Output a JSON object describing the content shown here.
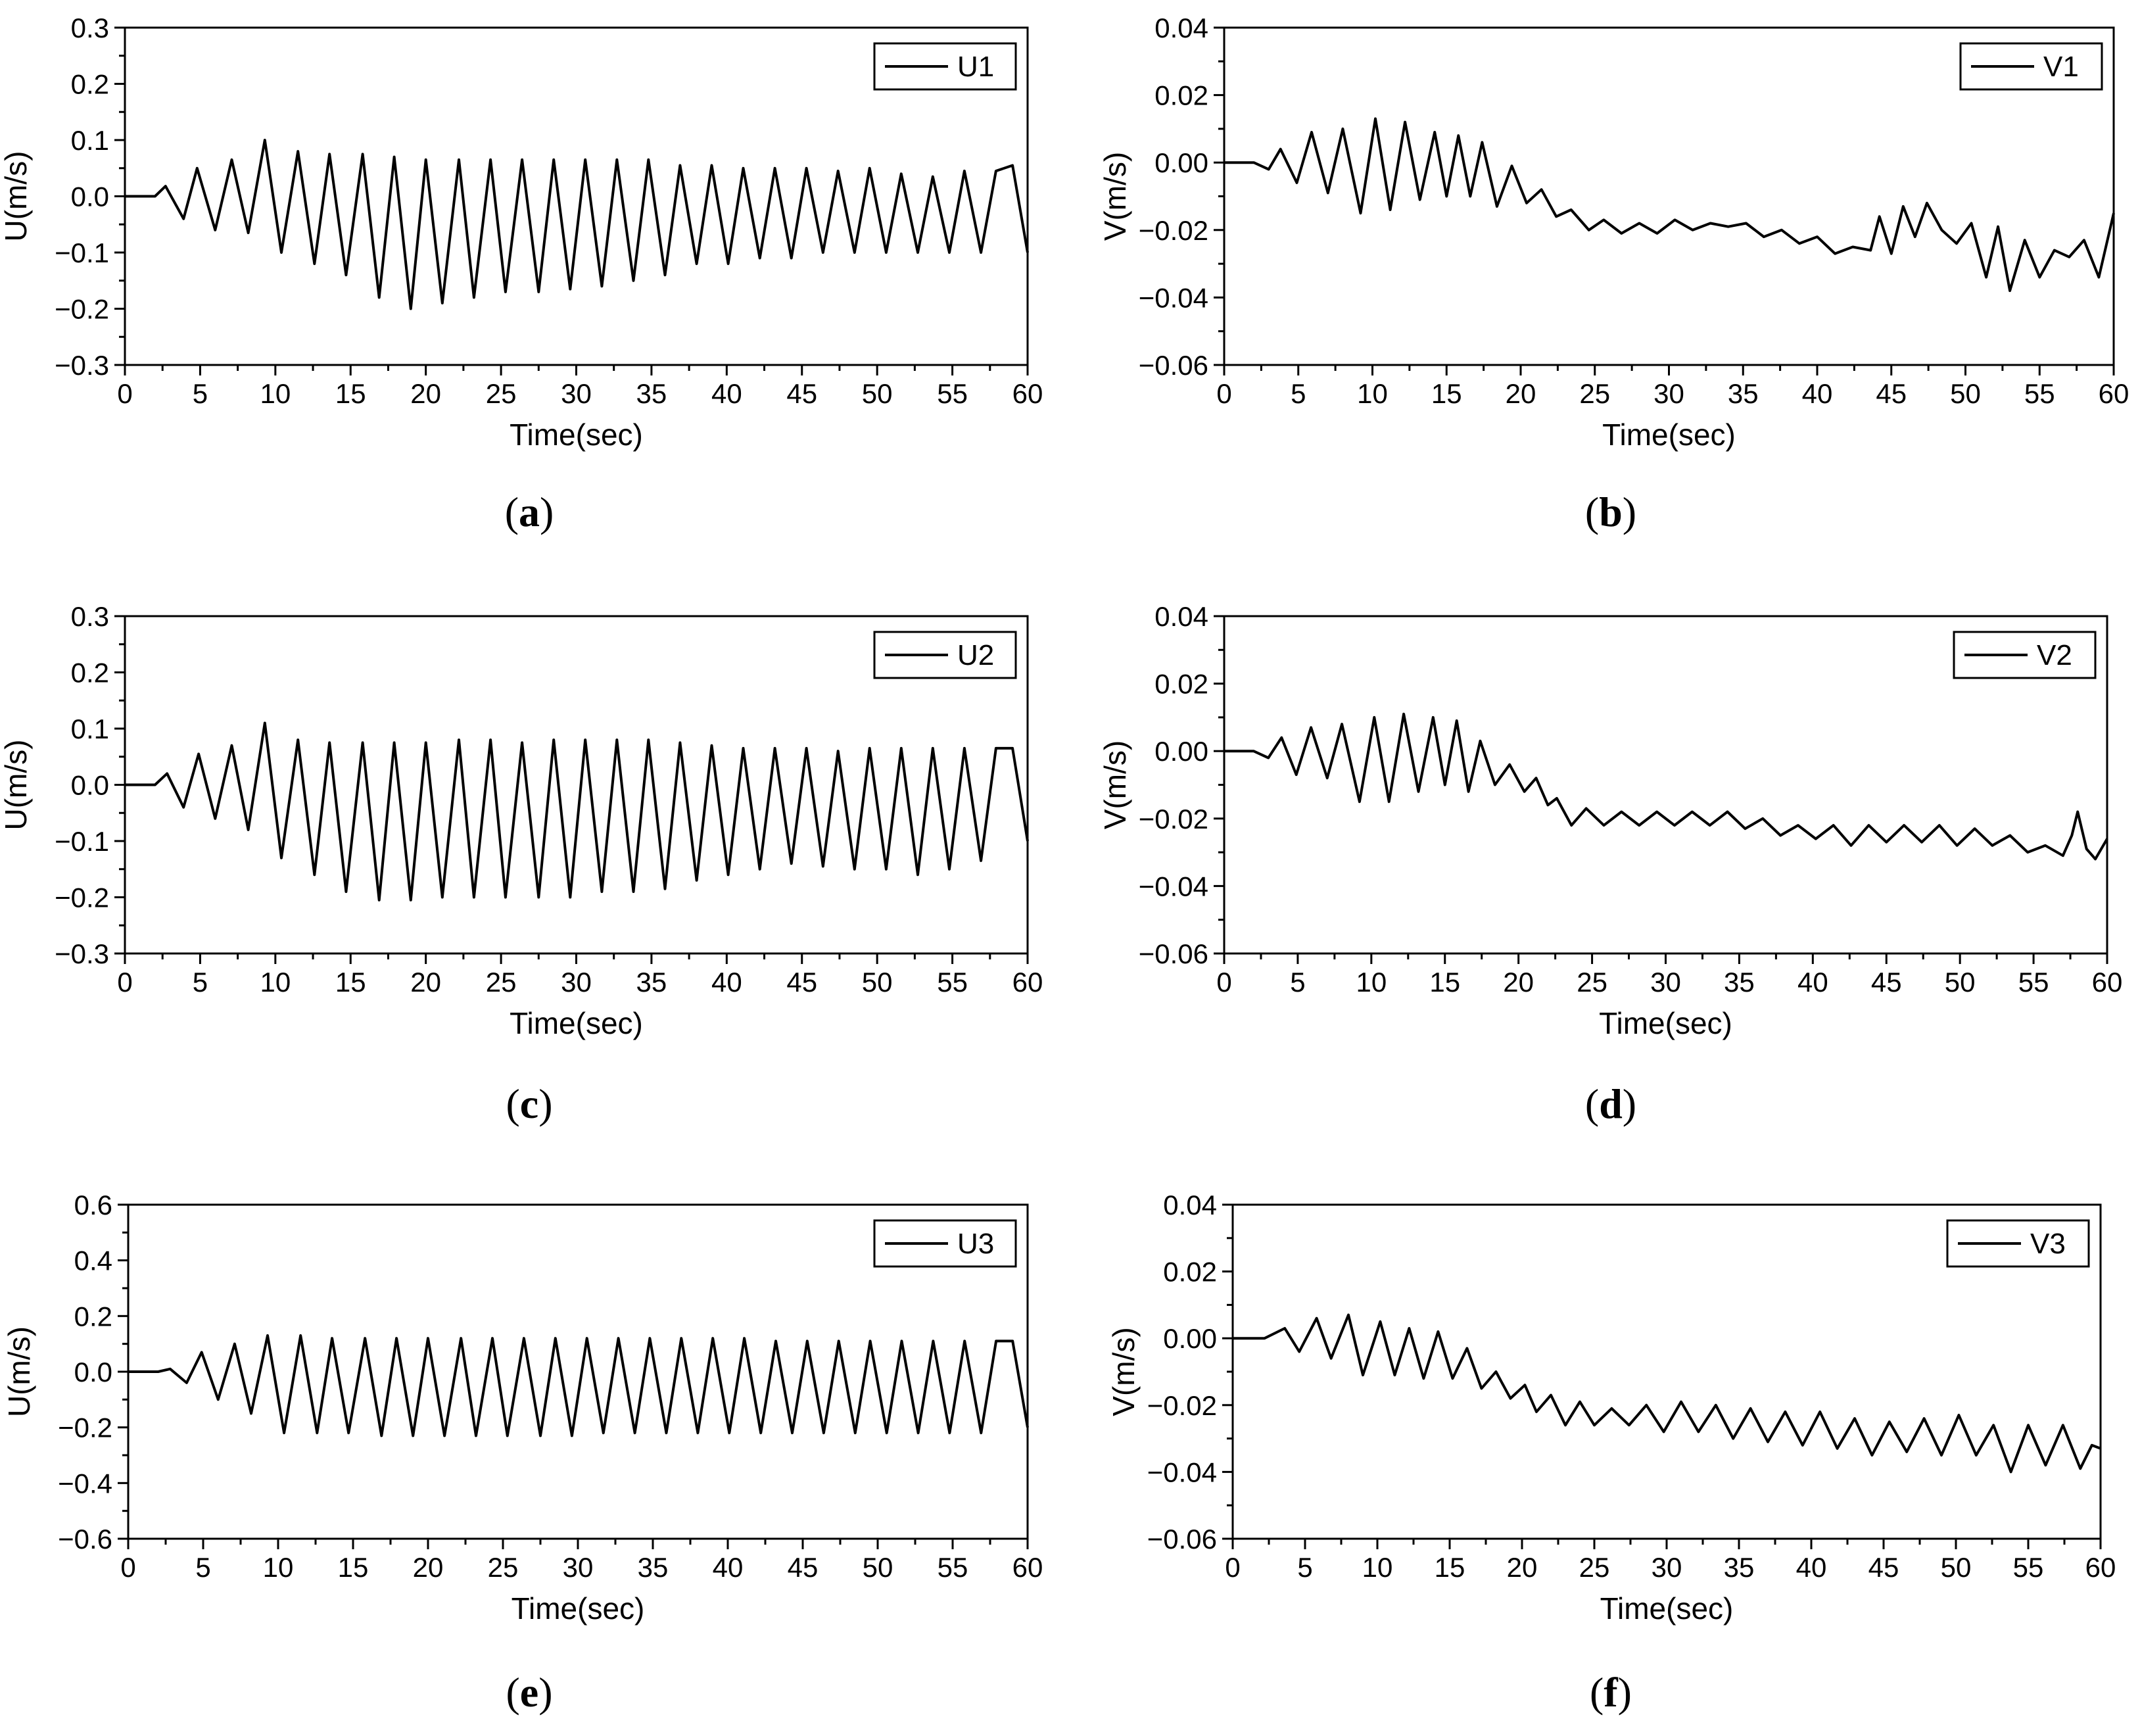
{
  "chart_data": [
    {
      "type": "line",
      "panel": "a",
      "caption_letter": "a",
      "xlabel": "Time(sec)",
      "ylabel": "U(m/s)",
      "xlim": [
        0,
        60
      ],
      "ylim": [
        -0.3,
        0.3
      ],
      "xticks": [
        "0",
        "5",
        "10",
        "15",
        "20",
        "25",
        "30",
        "35",
        "40",
        "45",
        "50",
        "55",
        "60"
      ],
      "yticks": [
        "0.3",
        "0.2",
        "0.1",
        "0.0",
        "−0.1",
        "−0.2",
        "−0.3"
      ],
      "series": [
        {
          "name": "U1",
          "color": "#000000",
          "x": [
            0,
            2.0,
            2.7,
            3.9,
            4.8,
            6.0,
            7.1,
            8.2,
            9.3,
            10.4,
            11.5,
            12.6,
            13.6,
            14.7,
            15.8,
            16.9,
            17.9,
            19.0,
            20.0,
            21.1,
            22.2,
            23.2,
            24.3,
            25.3,
            26.4,
            27.5,
            28.5,
            29.6,
            30.6,
            31.7,
            32.7,
            33.8,
            34.8,
            35.9,
            36.9,
            38.0,
            39.0,
            40.1,
            41.1,
            42.2,
            43.2,
            44.3,
            45.3,
            46.4,
            47.4,
            48.5,
            49.5,
            50.6,
            51.6,
            52.7,
            53.7,
            54.8,
            55.8,
            56.9,
            57.9,
            59.0,
            60.0
          ],
          "values": [
            0,
            0,
            0.018,
            -0.04,
            0.05,
            -0.06,
            0.065,
            -0.065,
            0.1,
            -0.1,
            0.08,
            -0.12,
            0.075,
            -0.14,
            0.075,
            -0.18,
            0.07,
            -0.2,
            0.065,
            -0.19,
            0.065,
            -0.18,
            0.065,
            -0.17,
            0.065,
            -0.17,
            0.065,
            -0.165,
            0.065,
            -0.16,
            0.065,
            -0.15,
            0.065,
            -0.14,
            0.055,
            -0.12,
            0.055,
            -0.12,
            0.05,
            -0.11,
            0.05,
            -0.11,
            0.05,
            -0.1,
            0.045,
            -0.1,
            0.05,
            -0.1,
            0.04,
            -0.1,
            0.035,
            -0.1,
            0.045,
            -0.1,
            0.045,
            0.055,
            -0.1
          ]
        }
      ]
    },
    {
      "type": "line",
      "panel": "b",
      "caption_letter": "b",
      "xlabel": "Time(sec)",
      "ylabel": "V(m/s)",
      "xlim": [
        0,
        60
      ],
      "ylim": [
        -0.06,
        0.04
      ],
      "xticks": [
        "0",
        "5",
        "10",
        "15",
        "20",
        "25",
        "30",
        "35",
        "40",
        "45",
        "50",
        "55",
        "60"
      ],
      "yticks": [
        "0.04",
        "0.02",
        "0.00",
        "−0.02",
        "−0.04",
        "−0.06"
      ],
      "series": [
        {
          "name": "V1",
          "color": "#000000",
          "x": [
            0,
            2.0,
            3.0,
            3.8,
            4.9,
            5.9,
            7.0,
            8.0,
            9.2,
            10.2,
            11.2,
            12.2,
            13.2,
            14.2,
            15.0,
            15.8,
            16.6,
            17.4,
            18.4,
            19.4,
            20.4,
            21.4,
            22.4,
            23.4,
            24.6,
            25.6,
            26.8,
            28.0,
            29.2,
            30.4,
            31.6,
            32.8,
            34.0,
            35.2,
            36.4,
            37.6,
            38.8,
            40.0,
            41.2,
            42.4,
            43.6,
            44.2,
            45.0,
            45.8,
            46.6,
            47.4,
            48.4,
            49.4,
            50.4,
            51.4,
            52.2,
            53.0,
            54.0,
            55.0,
            56.0,
            57.0,
            58.0,
            59.0,
            60.0
          ],
          "values": [
            0,
            0,
            -0.002,
            0.004,
            -0.006,
            0.009,
            -0.009,
            0.01,
            -0.015,
            0.013,
            -0.014,
            0.012,
            -0.011,
            0.009,
            -0.01,
            0.008,
            -0.01,
            0.006,
            -0.013,
            -0.001,
            -0.012,
            -0.008,
            -0.016,
            -0.014,
            -0.02,
            -0.017,
            -0.021,
            -0.018,
            -0.021,
            -0.017,
            -0.02,
            -0.018,
            -0.019,
            -0.018,
            -0.022,
            -0.02,
            -0.024,
            -0.022,
            -0.027,
            -0.025,
            -0.026,
            -0.016,
            -0.027,
            -0.013,
            -0.022,
            -0.012,
            -0.02,
            -0.024,
            -0.018,
            -0.034,
            -0.019,
            -0.038,
            -0.023,
            -0.034,
            -0.026,
            -0.028,
            -0.023,
            -0.034,
            -0.015
          ]
        }
      ]
    },
    {
      "type": "line",
      "panel": "c",
      "caption_letter": "c",
      "xlabel": "Time(sec)",
      "ylabel": "U(m/s)",
      "xlim": [
        0,
        60
      ],
      "ylim": [
        -0.3,
        0.3
      ],
      "xticks": [
        "0",
        "5",
        "10",
        "15",
        "20",
        "25",
        "30",
        "35",
        "40",
        "45",
        "50",
        "55",
        "60"
      ],
      "yticks": [
        "0.3",
        "0.2",
        "0.1",
        "0.0",
        "−0.1",
        "−0.2",
        "−0.3"
      ],
      "series": [
        {
          "name": "U2",
          "color": "#000000",
          "x": [
            0,
            2.0,
            2.8,
            3.9,
            4.9,
            6.0,
            7.1,
            8.2,
            9.3,
            10.4,
            11.5,
            12.6,
            13.6,
            14.7,
            15.8,
            16.9,
            17.9,
            19.0,
            20.0,
            21.1,
            22.2,
            23.2,
            24.3,
            25.3,
            26.4,
            27.5,
            28.5,
            29.6,
            30.6,
            31.7,
            32.7,
            33.8,
            34.8,
            35.9,
            36.9,
            38.0,
            39.0,
            40.1,
            41.1,
            42.2,
            43.2,
            44.3,
            45.3,
            46.4,
            47.4,
            48.5,
            49.5,
            50.6,
            51.6,
            52.7,
            53.7,
            54.8,
            55.8,
            56.9,
            57.9,
            59.0,
            60.0
          ],
          "values": [
            0,
            0,
            0.02,
            -0.04,
            0.055,
            -0.06,
            0.07,
            -0.08,
            0.11,
            -0.13,
            0.08,
            -0.16,
            0.075,
            -0.19,
            0.075,
            -0.205,
            0.075,
            -0.205,
            0.075,
            -0.2,
            0.08,
            -0.2,
            0.08,
            -0.2,
            0.075,
            -0.2,
            0.08,
            -0.2,
            0.08,
            -0.19,
            0.08,
            -0.19,
            0.08,
            -0.185,
            0.075,
            -0.17,
            0.07,
            -0.16,
            0.065,
            -0.15,
            0.065,
            -0.14,
            0.065,
            -0.145,
            0.06,
            -0.15,
            0.065,
            -0.15,
            0.065,
            -0.16,
            0.065,
            -0.15,
            0.065,
            -0.135,
            0.065,
            0.065,
            -0.1
          ]
        }
      ]
    },
    {
      "type": "line",
      "panel": "d",
      "caption_letter": "d",
      "xlabel": "Time(sec)",
      "ylabel": "V(m/s)",
      "xlim": [
        0,
        60
      ],
      "ylim": [
        -0.06,
        0.04
      ],
      "xticks": [
        "0",
        "5",
        "10",
        "15",
        "20",
        "25",
        "30",
        "35",
        "40",
        "45",
        "50",
        "55",
        "60"
      ],
      "yticks": [
        "0.04",
        "0.02",
        "0.00",
        "−0.02",
        "−0.04",
        "−0.06"
      ],
      "series": [
        {
          "name": "V2",
          "color": "#000000",
          "x": [
            0,
            2.0,
            3.0,
            3.9,
            4.9,
            5.9,
            7.0,
            8.0,
            9.2,
            10.2,
            11.2,
            12.2,
            13.2,
            14.2,
            15.0,
            15.8,
            16.6,
            17.4,
            18.4,
            19.4,
            20.4,
            21.2,
            22.0,
            22.6,
            23.6,
            24.6,
            25.8,
            27.0,
            28.2,
            29.4,
            30.6,
            31.8,
            33.0,
            34.2,
            35.4,
            36.6,
            37.8,
            39.0,
            40.2,
            41.4,
            42.6,
            43.8,
            45.0,
            46.2,
            47.4,
            48.6,
            49.8,
            51.0,
            52.2,
            53.4,
            54.6,
            55.8,
            57.0,
            57.6,
            58.0,
            58.6,
            59.2,
            60.0
          ],
          "values": [
            0,
            0,
            -0.002,
            0.004,
            -0.007,
            0.007,
            -0.008,
            0.008,
            -0.015,
            0.01,
            -0.015,
            0.011,
            -0.012,
            0.01,
            -0.01,
            0.009,
            -0.012,
            0.003,
            -0.01,
            -0.004,
            -0.012,
            -0.008,
            -0.016,
            -0.014,
            -0.022,
            -0.017,
            -0.022,
            -0.018,
            -0.022,
            -0.018,
            -0.022,
            -0.018,
            -0.022,
            -0.018,
            -0.023,
            -0.02,
            -0.025,
            -0.022,
            -0.026,
            -0.022,
            -0.028,
            -0.022,
            -0.027,
            -0.022,
            -0.027,
            -0.022,
            -0.028,
            -0.023,
            -0.028,
            -0.025,
            -0.03,
            -0.028,
            -0.031,
            -0.025,
            -0.018,
            -0.029,
            -0.032,
            -0.026
          ]
        }
      ]
    },
    {
      "type": "line",
      "panel": "e",
      "caption_letter": "e",
      "xlabel": "Time(sec)",
      "ylabel": "U(m/s)",
      "xlim": [
        0,
        60
      ],
      "ylim": [
        -0.6,
        0.6
      ],
      "xticks": [
        "0",
        "5",
        "10",
        "15",
        "20",
        "25",
        "30",
        "35",
        "40",
        "45",
        "50",
        "55",
        "60"
      ],
      "yticks": [
        "0.6",
        "0.4",
        "0.2",
        "0.0",
        "−0.2",
        "−0.4",
        "−0.6"
      ],
      "series": [
        {
          "name": "U3",
          "color": "#000000",
          "x": [
            0,
            2.0,
            2.8,
            3.9,
            4.9,
            6.0,
            7.1,
            8.2,
            9.3,
            10.4,
            11.5,
            12.6,
            13.6,
            14.7,
            15.8,
            16.9,
            17.9,
            19.0,
            20.0,
            21.1,
            22.2,
            23.2,
            24.3,
            25.3,
            26.4,
            27.5,
            28.5,
            29.6,
            30.6,
            31.7,
            32.7,
            33.8,
            34.8,
            35.9,
            36.9,
            38.0,
            39.0,
            40.1,
            41.1,
            42.2,
            43.2,
            44.3,
            45.3,
            46.4,
            47.4,
            48.5,
            49.5,
            50.6,
            51.6,
            52.7,
            53.7,
            54.8,
            55.8,
            56.9,
            57.9,
            59.0,
            60.0
          ],
          "values": [
            0,
            0,
            0.01,
            -0.04,
            0.07,
            -0.1,
            0.1,
            -0.15,
            0.13,
            -0.22,
            0.13,
            -0.22,
            0.12,
            -0.22,
            0.12,
            -0.23,
            0.12,
            -0.23,
            0.12,
            -0.23,
            0.12,
            -0.23,
            0.12,
            -0.23,
            0.12,
            -0.23,
            0.12,
            -0.23,
            0.12,
            -0.22,
            0.12,
            -0.22,
            0.12,
            -0.22,
            0.12,
            -0.22,
            0.12,
            -0.22,
            0.12,
            -0.22,
            0.11,
            -0.22,
            0.11,
            -0.22,
            0.11,
            -0.22,
            0.11,
            -0.22,
            0.11,
            -0.22,
            0.11,
            -0.22,
            0.11,
            -0.22,
            0.11,
            0.11,
            -0.2
          ]
        }
      ]
    },
    {
      "type": "line",
      "panel": "f",
      "caption_letter": "f",
      "xlabel": "Time(sec)",
      "ylabel": "V(m/s)",
      "xlim": [
        0,
        60
      ],
      "ylim": [
        -0.06,
        0.04
      ],
      "xticks": [
        "0",
        "5",
        "10",
        "15",
        "20",
        "25",
        "30",
        "35",
        "40",
        "45",
        "50",
        "55",
        "60"
      ],
      "yticks": [
        "0.04",
        "0.02",
        "0.00",
        "−0.02",
        "−0.04",
        "−0.06"
      ],
      "series": [
        {
          "name": "V3",
          "color": "#000000",
          "x": [
            0,
            2.2,
            3.6,
            4.6,
            5.8,
            6.8,
            8.0,
            9.0,
            10.2,
            11.2,
            12.2,
            13.2,
            14.2,
            15.2,
            16.2,
            17.2,
            18.2,
            19.2,
            20.2,
            21.0,
            22.0,
            23.0,
            24.0,
            25.0,
            26.2,
            27.4,
            28.6,
            29.8,
            31.0,
            32.2,
            33.4,
            34.6,
            35.8,
            37.0,
            38.2,
            39.4,
            40.6,
            41.8,
            43.0,
            44.2,
            45.4,
            46.6,
            47.8,
            49.0,
            50.2,
            51.4,
            52.6,
            53.8,
            55.0,
            56.2,
            57.4,
            58.6,
            59.4,
            60.0
          ],
          "values": [
            0,
            0,
            0.003,
            -0.004,
            0.006,
            -0.006,
            0.007,
            -0.011,
            0.005,
            -0.011,
            0.003,
            -0.012,
            0.002,
            -0.012,
            -0.003,
            -0.015,
            -0.01,
            -0.018,
            -0.014,
            -0.022,
            -0.017,
            -0.026,
            -0.019,
            -0.026,
            -0.021,
            -0.026,
            -0.02,
            -0.028,
            -0.019,
            -0.028,
            -0.02,
            -0.03,
            -0.021,
            -0.031,
            -0.022,
            -0.032,
            -0.022,
            -0.033,
            -0.024,
            -0.035,
            -0.025,
            -0.034,
            -0.024,
            -0.035,
            -0.023,
            -0.035,
            -0.026,
            -0.04,
            -0.026,
            -0.038,
            -0.026,
            -0.039,
            -0.032,
            -0.033
          ]
        }
      ]
    }
  ]
}
